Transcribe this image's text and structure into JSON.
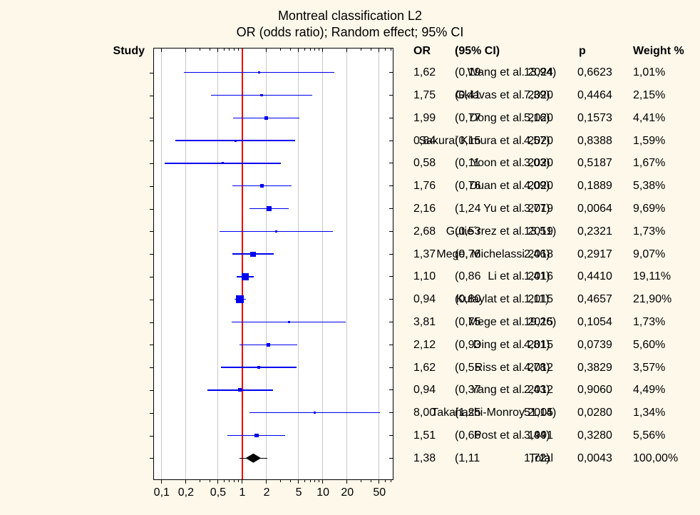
{
  "title": "Montreal classification L2",
  "subtitle": "OR (odds ratio); Random effect; 95% CI",
  "table_headers": {
    "study": "Study",
    "or": "OR",
    "ci": "(95% CI)",
    "p": "p",
    "weight": "Weight %"
  },
  "colors": {
    "background": "#FDF8EA",
    "plot_background": "#FFFFFF",
    "grid": "#C8C8C8",
    "frame": "#000000",
    "reference_line": "#EE0000",
    "study_marker": "#0000EE",
    "total_marker": "#000000",
    "text": "#000000"
  },
  "chart_data": {
    "type": "forest",
    "x_scale": "log",
    "x_range": [
      0.08,
      74
    ],
    "reference_line_value": 1,
    "grid": true,
    "x_ticks": [
      {
        "label": "0,1",
        "value": 0.1
      },
      {
        "label": "0,2",
        "value": 0.2
      },
      {
        "label": "0,5",
        "value": 0.5
      },
      {
        "label": "1",
        "value": 1
      },
      {
        "label": "2",
        "value": 2
      },
      {
        "label": "5",
        "value": 5
      },
      {
        "label": "10",
        "value": 10
      },
      {
        "label": "20",
        "value": 20
      },
      {
        "label": "50",
        "value": 50
      }
    ],
    "studies": [
      {
        "name": "Wang et al. 2024",
        "or": 1.62,
        "lo": 0.19,
        "hi": 13.94,
        "weight": 1.01,
        "or_text": "1,62",
        "lo_text": "(0,19",
        "hi_text": "13,94)",
        "p_text": "0,6623",
        "weight_text": "1,01%"
      },
      {
        "name": "Gklavas et al. 2020",
        "or": 1.75,
        "lo": 0.41,
        "hi": 7.39,
        "weight": 2.15,
        "or_text": "1,75",
        "lo_text": "(0,41",
        "hi_text": "7,39)",
        "p_text": "0,4464",
        "weight_text": "2,15%"
      },
      {
        "name": "Dong et al. 2020",
        "or": 1.99,
        "lo": 0.77,
        "hi": 5.16,
        "weight": 4.41,
        "or_text": "1,99",
        "lo_text": "(0,77",
        "hi_text": "5,16)",
        "p_text": "0,1573",
        "weight_text": "4,41%"
      },
      {
        "name": "Sakurai Kimura et al. 2020",
        "or": 0.84,
        "lo": 0.15,
        "hi": 4.57,
        "weight": 1.59,
        "or_text": "0,84",
        "lo_text": "(0,15",
        "hi_text": "4,57)",
        "p_text": "0,8388",
        "weight_text": "1,59%"
      },
      {
        "name": "Yoon et al. 2020",
        "or": 0.58,
        "lo": 0.11,
        "hi": 3.03,
        "weight": 1.67,
        "or_text": "0,58",
        "lo_text": "(0,11",
        "hi_text": "3,03)",
        "p_text": "0,5187",
        "weight_text": "1,67%"
      },
      {
        "name": "Duan et al. 2020",
        "or": 1.76,
        "lo": 0.76,
        "hi": 4.09,
        "weight": 5.38,
        "or_text": "1,76",
        "lo_text": "(0,76",
        "hi_text": "4,09)",
        "p_text": "0,1889",
        "weight_text": "5,38%"
      },
      {
        "name": "Yu et al. 2019",
        "or": 2.16,
        "lo": 1.24,
        "hi": 3.77,
        "weight": 9.69,
        "or_text": "2,16",
        "lo_text": "(1,24",
        "hi_text": "3,77)",
        "p_text": "0,0064",
        "weight_text": "9,69%"
      },
      {
        "name": "Gutie´rrez et al. 2019",
        "or": 2.68,
        "lo": 0.53,
        "hi": 13.51,
        "weight": 1.73,
        "or_text": "2,68",
        "lo_text": "(0,53",
        "hi_text": "13,51)",
        "p_text": "0,2321",
        "weight_text": "1,73%"
      },
      {
        "name": "Mege, Michelassi 2018",
        "or": 1.37,
        "lo": 0.76,
        "hi": 2.46,
        "weight": 9.07,
        "or_text": "1,37",
        "lo_text": "(0,76",
        "hi_text": "2,46)",
        "p_text": "0,2917",
        "weight_text": "9,07%"
      },
      {
        "name": "Li et al. 2016",
        "or": 1.1,
        "lo": 0.86,
        "hi": 1.41,
        "weight": 19.11,
        "or_text": "1,10",
        "lo_text": "(0,86",
        "hi_text": "1,41)",
        "p_text": "0,4410",
        "weight_text": "19,11%"
      },
      {
        "name": "Kulaylat et al. 2015",
        "or": 0.94,
        "lo": 0.8,
        "hi": 1.11,
        "weight": 21.9,
        "or_text": "0,94",
        "lo_text": "(0,80",
        "hi_text": "1,11)",
        "p_text": "0,4657",
        "weight_text": "21,90%"
      },
      {
        "name": "Mege et al. 2015",
        "or": 3.81,
        "lo": 0.75,
        "hi": 19.26,
        "weight": 1.73,
        "or_text": "3,81",
        "lo_text": "(0,75",
        "hi_text": "19,26)",
        "p_text": "0,1054",
        "weight_text": "1,73%"
      },
      {
        "name": "Ding et al. 2015",
        "or": 2.12,
        "lo": 0.93,
        "hi": 4.81,
        "weight": 5.6,
        "or_text": "2,12",
        "lo_text": "(0,93",
        "hi_text": "4,81)",
        "p_text": "0,0739",
        "weight_text": "5,60%"
      },
      {
        "name": "Riss et al. 2012",
        "or": 1.62,
        "lo": 0.55,
        "hi": 4.78,
        "weight": 3.57,
        "or_text": "1,62",
        "lo_text": "(0,55",
        "hi_text": "4,78)",
        "p_text": "0,3829",
        "weight_text": "3,57%"
      },
      {
        "name": "Yang et al. 2012",
        "or": 0.94,
        "lo": 0.37,
        "hi": 2.43,
        "weight": 4.49,
        "or_text": "0,94",
        "lo_text": "(0,37",
        "hi_text": "2,43)",
        "p_text": "0,9060",
        "weight_text": "4,49%"
      },
      {
        "name": "Takahashi-Monroy 2005",
        "or": 8.0,
        "lo": 1.25,
        "hi": 51.14,
        "weight": 1.34,
        "or_text": "8,00",
        "lo_text": "(1,25",
        "hi_text": "51,14)",
        "p_text": "0,0280",
        "weight_text": "1,34%"
      },
      {
        "name": "Post et al. 1991",
        "or": 1.51,
        "lo": 0.66,
        "hi": 3.44,
        "weight": 5.56,
        "or_text": "1,51",
        "lo_text": "(0,66",
        "hi_text": "3,44)",
        "p_text": "0,3280",
        "weight_text": "5,56%"
      }
    ],
    "total": {
      "name": "Total",
      "or": 1.38,
      "lo": 1.11,
      "hi": 1.72,
      "weight": 100.0,
      "or_text": "1,38",
      "lo_text": "(1,11",
      "hi_text": "1,72)",
      "p_text": "0,0043",
      "weight_text": "100,00%"
    }
  }
}
